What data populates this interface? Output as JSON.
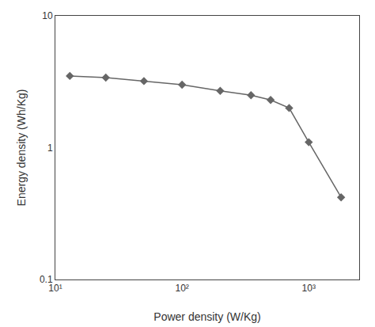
{
  "chart_data": {
    "type": "line",
    "log": true,
    "x": [
      13,
      25,
      50,
      100,
      200,
      350,
      500,
      700,
      1000,
      1800
    ],
    "values": [
      3.5,
      3.4,
      3.2,
      3.0,
      2.7,
      2.5,
      2.3,
      2.0,
      1.1,
      0.42
    ],
    "xlabel": "Power density (W/Kg)",
    "ylabel": "Energy density (Wh/Kg)",
    "xlim": [
      10,
      2500
    ],
    "ylim": [
      0.1,
      10
    ],
    "xticks": [
      {
        "value": 10,
        "label": "10¹"
      },
      {
        "value": 100,
        "label": "10²"
      },
      {
        "value": 1000,
        "label": "10³"
      }
    ],
    "yticks": [
      0.1,
      1,
      10
    ],
    "color": "#666666",
    "marker": "diamond",
    "grid": false
  }
}
